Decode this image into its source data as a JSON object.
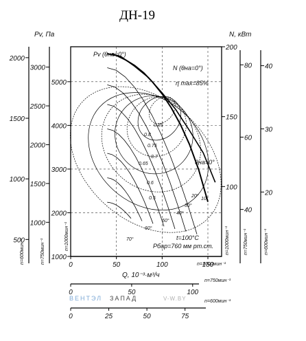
{
  "title": "ДН-19",
  "chart_data": {
    "type": "line",
    "title": "ДН-19",
    "xlabel": "Q, 10⁻³·м³/ч",
    "ylabel_left": "Pv, Па",
    "ylabel_right": "N, кВт",
    "pressure_axes": [
      {
        "label": "n=600мин⁻¹",
        "ticks": [
          500,
          1000,
          1500,
          2000
        ]
      },
      {
        "label": "n=750мин⁻¹",
        "ticks": [
          1000,
          1500,
          2000,
          2500,
          3000
        ]
      },
      {
        "label": "n=1000мин⁻¹",
        "ticks": [
          1000,
          2000,
          3000,
          4000,
          5000
        ]
      }
    ],
    "flow_axes": [
      {
        "label": "n=1000мин⁻¹",
        "ticks": [
          0,
          50,
          100,
          150
        ]
      },
      {
        "label": "n=750мин⁻¹",
        "ticks": [
          0,
          50,
          100
        ]
      },
      {
        "label": "n=600мин⁻¹",
        "ticks": [
          0,
          25,
          50,
          75
        ]
      }
    ],
    "power_axes": [
      {
        "label": "n=1000мин⁻¹",
        "ticks": [
          100,
          150,
          200
        ]
      },
      {
        "label": "n=750мин⁻¹",
        "ticks": [
          40,
          60,
          80
        ]
      },
      {
        "label": "n=600мин⁻¹",
        "ticks": [
          20,
          30,
          40
        ]
      }
    ],
    "xlim": [
      0,
      165
    ],
    "ylim": [
      1000,
      5800
    ],
    "power_ylim": [
      50,
      200
    ],
    "grid": true,
    "series": [
      {
        "name": "Pv (θна=0°)",
        "x": [
          40,
          50,
          60,
          70,
          80,
          90,
          100,
          110,
          120,
          130,
          140,
          150
        ],
        "y": [
          5640,
          5600,
          5500,
          5370,
          5200,
          4980,
          4720,
          4400,
          4020,
          3560,
          2980,
          2250
        ]
      },
      {
        "name": "N (θна=0°)",
        "x": [
          45,
          55,
          70,
          85,
          100,
          115,
          130,
          145,
          158
        ],
        "y": [
          195,
          193,
          186,
          178,
          167,
          155,
          140,
          124,
          103
        ]
      }
    ],
    "efficiency_curves": [
      "0.85",
      "0.8",
      "0.75",
      "0.7",
      "0.65",
      "0.6",
      "0.5"
    ],
    "angle_curves": [
      "0°",
      "10°",
      "20°",
      "30°",
      "40°",
      "50°",
      "60°",
      "70°"
    ],
    "annotations": {
      "eta": "η max=85%",
      "theta": "θна=0°",
      "temp": "t=100°C",
      "pressure": "Pбар=760 мм рт.ст."
    }
  },
  "watermark": {
    "part1": "ВЕНТЭЛ",
    "part2": "ЗАПАД",
    "part3": "V-W.BY"
  }
}
